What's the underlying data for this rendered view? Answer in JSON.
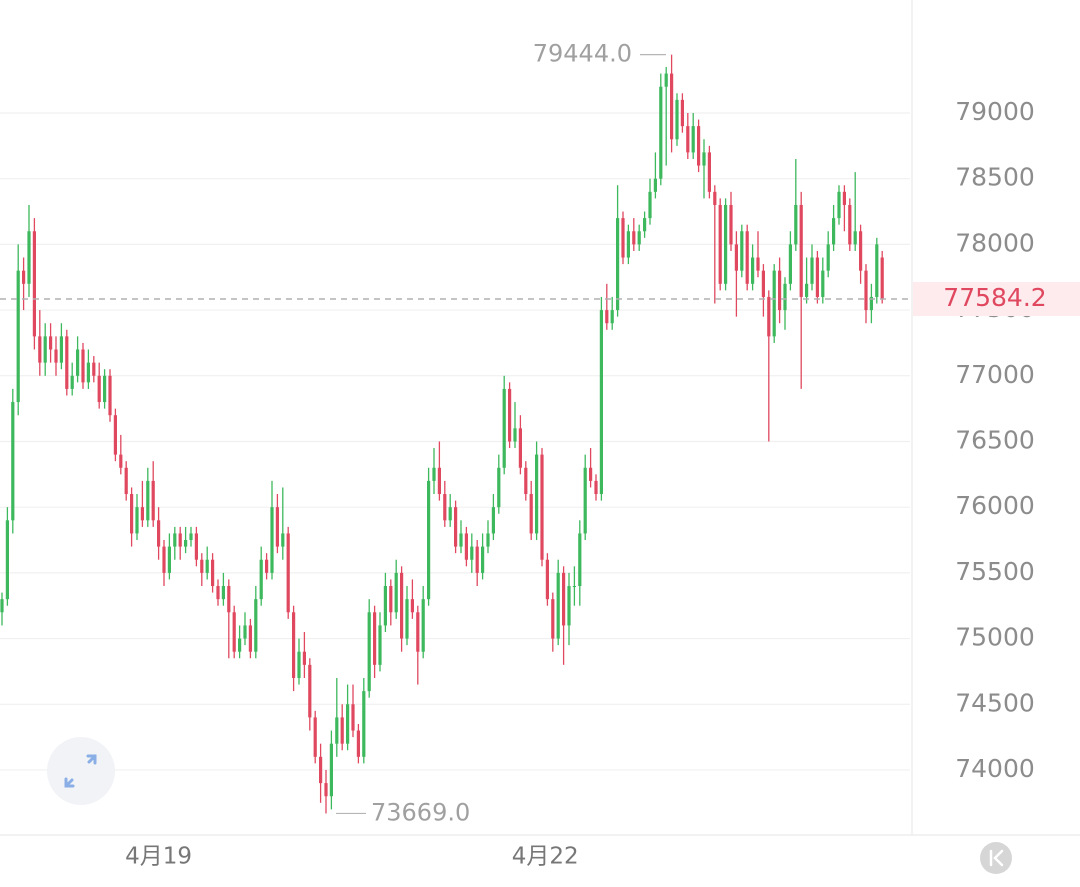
{
  "chart_data": {
    "type": "candlestick",
    "up_color": "#3db85c",
    "down_color": "#e0485f",
    "ylim": [
      73505,
      79860
    ],
    "yticks": [
      74000,
      74500,
      75000,
      75500,
      76000,
      76500,
      77000,
      77500,
      78000,
      78500,
      79000
    ],
    "grid": true,
    "xticks": [
      {
        "value": 29,
        "label": "4月19"
      },
      {
        "value": 100.6,
        "label": "4月22"
      }
    ],
    "high_annotation": {
      "value": 79444,
      "label": "79444.0"
    },
    "low_annotation": {
      "value": 73669,
      "label": "73669.0"
    },
    "last_price": {
      "value": 77584.2,
      "label": "77584.2",
      "color": "#e0485f"
    },
    "ohlc": [
      [
        75200,
        75350,
        75100,
        75300
      ],
      [
        75300,
        76000,
        75250,
        75900
      ],
      [
        75900,
        76900,
        75800,
        76800
      ],
      [
        76800,
        78000,
        76700,
        77800
      ],
      [
        77800,
        77900,
        77500,
        77700
      ],
      [
        77700,
        78300,
        77600,
        78100
      ],
      [
        78100,
        78200,
        77200,
        77300
      ],
      [
        77300,
        77500,
        77000,
        77100
      ],
      [
        77100,
        77400,
        77000,
        77300
      ],
      [
        77300,
        77400,
        77100,
        77200
      ],
      [
        77200,
        77300,
        77000,
        77100
      ],
      [
        77100,
        77400,
        77050,
        77300
      ],
      [
        77300,
        77350,
        76850,
        76900
      ],
      [
        76900,
        77100,
        76850,
        77000
      ],
      [
        77000,
        77300,
        76950,
        77200
      ],
      [
        77200,
        77250,
        76900,
        76950
      ],
      [
        76950,
        77200,
        76900,
        77100
      ],
      [
        77100,
        77150,
        76950,
        77000
      ],
      [
        77000,
        77100,
        76750,
        76800
      ],
      [
        76800,
        77050,
        76750,
        77000
      ],
      [
        77000,
        77050,
        76650,
        76700
      ],
      [
        76700,
        76750,
        76350,
        76400
      ],
      [
        76400,
        76550,
        76250,
        76300
      ],
      [
        76300,
        76350,
        76050,
        76100
      ],
      [
        76100,
        76150,
        75700,
        75800
      ],
      [
        75800,
        76100,
        75750,
        76000
      ],
      [
        76000,
        76200,
        75850,
        75900
      ],
      [
        75900,
        76300,
        75850,
        76200
      ],
      [
        76200,
        76350,
        75850,
        75900
      ],
      [
        75900,
        76000,
        75600,
        75700
      ],
      [
        75700,
        75750,
        75400,
        75500
      ],
      [
        75500,
        75800,
        75450,
        75700
      ],
      [
        75700,
        75850,
        75600,
        75800
      ],
      [
        75800,
        75850,
        75600,
        75700
      ],
      [
        75700,
        75850,
        75650,
        75750
      ],
      [
        75750,
        75850,
        75700,
        75800
      ],
      [
        75800,
        75850,
        75550,
        75600
      ],
      [
        75600,
        75650,
        75400,
        75500
      ],
      [
        75500,
        75700,
        75450,
        75600
      ],
      [
        75600,
        75650,
        75350,
        75400
      ],
      [
        75400,
        75450,
        75250,
        75300
      ],
      [
        75300,
        75500,
        75250,
        75400
      ],
      [
        75400,
        75450,
        74850,
        75200
      ],
      [
        75200,
        75250,
        74850,
        74900
      ],
      [
        74900,
        75100,
        74850,
        75000
      ],
      [
        75000,
        75200,
        74950,
        75100
      ],
      [
        75100,
        75150,
        74850,
        74900
      ],
      [
        74900,
        75400,
        74850,
        75300
      ],
      [
        75300,
        75700,
        75250,
        75600
      ],
      [
        75600,
        75650,
        75450,
        75500
      ],
      [
        75500,
        76200,
        75450,
        76000
      ],
      [
        76000,
        76100,
        75650,
        75700
      ],
      [
        75700,
        76150,
        75600,
        75800
      ],
      [
        75800,
        75850,
        75150,
        75200
      ],
      [
        75200,
        75250,
        74600,
        74700
      ],
      [
        74700,
        75000,
        74650,
        74900
      ],
      [
        74900,
        75050,
        74700,
        74800
      ],
      [
        74800,
        74850,
        74300,
        74400
      ],
      [
        74400,
        74450,
        74050,
        74100
      ],
      [
        74100,
        74200,
        73750,
        73900
      ],
      [
        73900,
        74000,
        73669,
        73800
      ],
      [
        73800,
        74300,
        73700,
        74200
      ],
      [
        74200,
        74700,
        74100,
        74400
      ],
      [
        74400,
        74500,
        74150,
        74200
      ],
      [
        74200,
        74650,
        74150,
        74500
      ],
      [
        74500,
        74650,
        74250,
        74300
      ],
      [
        74300,
        74350,
        74050,
        74100
      ],
      [
        74100,
        74700,
        74050,
        74600
      ],
      [
        74600,
        75300,
        74550,
        75200
      ],
      [
        75200,
        75250,
        74700,
        74800
      ],
      [
        74800,
        75200,
        74750,
        75100
      ],
      [
        75100,
        75500,
        75050,
        75400
      ],
      [
        75400,
        75450,
        75100,
        75200
      ],
      [
        75200,
        75600,
        75150,
        75500
      ],
      [
        75500,
        75550,
        74900,
        75000
      ],
      [
        75000,
        75400,
        74950,
        75300
      ],
      [
        75300,
        75450,
        75150,
        75200
      ],
      [
        75200,
        75250,
        74650,
        74900
      ],
      [
        74900,
        75400,
        74850,
        75300
      ],
      [
        75300,
        76300,
        75250,
        76200
      ],
      [
        76200,
        76450,
        76100,
        76300
      ],
      [
        76300,
        76500,
        76050,
        76100
      ],
      [
        76100,
        76200,
        75850,
        75900
      ],
      [
        75900,
        76100,
        75850,
        76000
      ],
      [
        76000,
        76050,
        75650,
        75700
      ],
      [
        75700,
        75900,
        75650,
        75800
      ],
      [
        75800,
        75850,
        75550,
        75600
      ],
      [
        75600,
        75800,
        75500,
        75700
      ],
      [
        75700,
        75750,
        75400,
        75500
      ],
      [
        75500,
        75800,
        75450,
        75700
      ],
      [
        75700,
        75900,
        75650,
        75800
      ],
      [
        75800,
        76100,
        75750,
        76000
      ],
      [
        76000,
        76400,
        75950,
        76300
      ],
      [
        76300,
        77000,
        76250,
        76900
      ],
      [
        76900,
        76950,
        76450,
        76500
      ],
      [
        76500,
        76800,
        76450,
        76600
      ],
      [
        76600,
        76700,
        76250,
        76300
      ],
      [
        76300,
        76350,
        76050,
        76100
      ],
      [
        76100,
        76200,
        75750,
        75800
      ],
      [
        75800,
        76500,
        75750,
        76400
      ],
      [
        76400,
        76450,
        75550,
        75600
      ],
      [
        75600,
        75650,
        75250,
        75300
      ],
      [
        75300,
        75350,
        74900,
        75000
      ],
      [
        75000,
        75600,
        74950,
        75500
      ],
      [
        75500,
        75550,
        74800,
        75100
      ],
      [
        75100,
        75500,
        74950,
        75400
      ],
      [
        75400,
        75550,
        75250,
        75400
      ],
      [
        75400,
        75900,
        75250,
        75800
      ],
      [
        75800,
        76400,
        75750,
        76300
      ],
      [
        76300,
        76450,
        76150,
        76200
      ],
      [
        76200,
        76250,
        76050,
        76100
      ],
      [
        76100,
        77600,
        76050,
        77500
      ],
      [
        77500,
        77700,
        77350,
        77400
      ],
      [
        77400,
        77600,
        77350,
        77500
      ],
      [
        77500,
        78450,
        77450,
        78200
      ],
      [
        78200,
        78250,
        77850,
        77900
      ],
      [
        77900,
        78150,
        77850,
        78100
      ],
      [
        78100,
        78200,
        77950,
        78000
      ],
      [
        78000,
        78150,
        77950,
        78100
      ],
      [
        78100,
        78250,
        78050,
        78200
      ],
      [
        78200,
        78500,
        78150,
        78400
      ],
      [
        78400,
        78700,
        78350,
        78500
      ],
      [
        78500,
        79300,
        78450,
        79200
      ],
      [
        79200,
        79350,
        78600,
        79300
      ],
      [
        79300,
        79444,
        78700,
        78800
      ],
      [
        78800,
        79150,
        78750,
        79100
      ],
      [
        79100,
        79150,
        78850,
        78900
      ],
      [
        78900,
        79000,
        78650,
        78700
      ],
      [
        78700,
        79000,
        78650,
        78900
      ],
      [
        78900,
        78950,
        78550,
        78600
      ],
      [
        78600,
        78800,
        78350,
        78700
      ],
      [
        78700,
        78750,
        78350,
        78400
      ],
      [
        78400,
        78450,
        77550,
        78300
      ],
      [
        78300,
        78350,
        77650,
        77700
      ],
      [
        77700,
        78350,
        77650,
        78300
      ],
      [
        78300,
        78400,
        77950,
        78000
      ],
      [
        78000,
        78100,
        77450,
        77800
      ],
      [
        77800,
        78150,
        77750,
        78100
      ],
      [
        78100,
        78150,
        77650,
        77700
      ],
      [
        77700,
        78000,
        77650,
        77900
      ],
      [
        77900,
        78100,
        77750,
        77800
      ],
      [
        77800,
        77850,
        77450,
        77600
      ],
      [
        77600,
        77650,
        76500,
        77300
      ],
      [
        77300,
        77850,
        77250,
        77800
      ],
      [
        77800,
        77900,
        77400,
        77500
      ],
      [
        77500,
        77750,
        77350,
        77700
      ],
      [
        77700,
        78100,
        77650,
        78000
      ],
      [
        78000,
        78650,
        77950,
        78300
      ],
      [
        78300,
        78400,
        76900,
        77600
      ],
      [
        77600,
        77900,
        77550,
        77700
      ],
      [
        77700,
        78000,
        77650,
        77900
      ],
      [
        77900,
        77950,
        77550,
        77600
      ],
      [
        77600,
        77900,
        77550,
        77800
      ],
      [
        77800,
        78100,
        77750,
        78000
      ],
      [
        78000,
        78300,
        77950,
        78200
      ],
      [
        78200,
        78450,
        78150,
        78400
      ],
      [
        78400,
        78450,
        78100,
        78300
      ],
      [
        78300,
        78350,
        77950,
        78000
      ],
      [
        78000,
        78550,
        77950,
        78100
      ],
      [
        78100,
        78150,
        77700,
        77800
      ],
      [
        77800,
        77850,
        77400,
        77500
      ],
      [
        77500,
        77700,
        77400,
        77600
      ],
      [
        77600,
        78050,
        77550,
        78000
      ],
      [
        77900,
        77950,
        77550,
        77584.2
      ]
    ]
  }
}
